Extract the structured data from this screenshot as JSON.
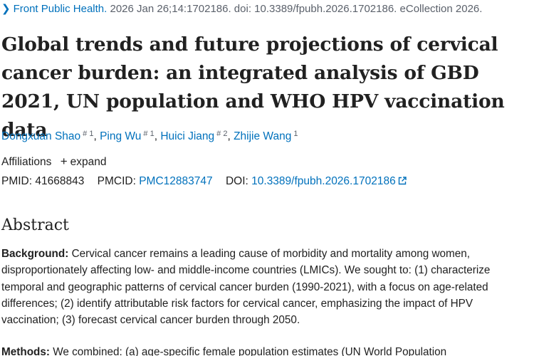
{
  "citation": {
    "journal": "Front Public Health.",
    "rest": " 2026 Jan 26;14:1702186. doi: 10.3389/fpubh.2026.1702186. eCollection 2026."
  },
  "title": "Global trends and future projections of cervical cancer burden: an integrated analysis of GBD 2021, UN population and WHO HPV vaccination data",
  "authors": [
    {
      "name": "Dongxuan Shao",
      "sup": "# 1"
    },
    {
      "name": "Ping Wu",
      "sup": "# 1"
    },
    {
      "name": "Huici Jiang",
      "sup": "# 2"
    },
    {
      "name": "Zhijie Wang",
      "sup": "1"
    }
  ],
  "affiliations": {
    "label": "Affiliations",
    "expand": "expand"
  },
  "ids": {
    "pmid_label": "PMID:",
    "pmid": "41668843",
    "pmcid_label": "PMCID:",
    "pmcid": "PMC12883747",
    "doi_label": "DOI:",
    "doi": "10.3389/fpubh.2026.1702186"
  },
  "abstract": {
    "heading": "Abstract",
    "background_label": "Background:",
    "background_text": " Cervical cancer remains a leading cause of morbidity and mortality among women, disproportionately affecting low- and middle-income countries (LMICs). We sought to: (1) characterize temporal and geographic patterns of cervical cancer burden (1990-2021), with a focus on age-related differences; (2) identify attributable risk factors for cervical cancer, emphasizing the impact of HPV vaccination; (3) forecast cervical cancer burden through 2050.",
    "methods_label": "Methods:",
    "methods_text": " We combined: (a) age-specific female population estimates (UN World Population"
  }
}
